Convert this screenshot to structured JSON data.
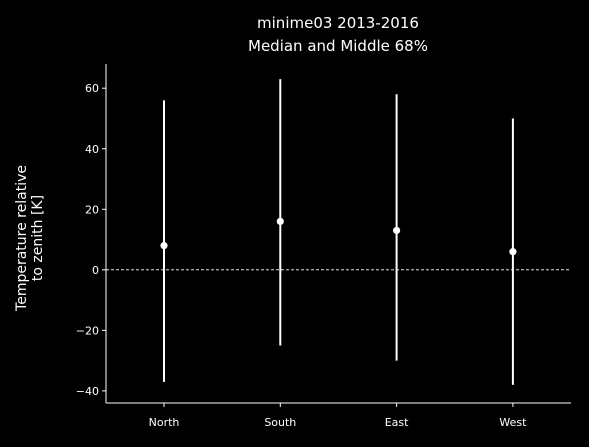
{
  "chart_data": {
    "type": "errorbar",
    "title_line1": "minime03 2013-2016",
    "title_line2": "Median and Middle 68%",
    "xlabel": "",
    "ylabel_line1": "Temperature relative",
    "ylabel_line2": "to zenith [K]",
    "categories": [
      "North",
      "South",
      "East",
      "West"
    ],
    "series": [
      {
        "median": [
          8,
          16,
          13,
          6
        ],
        "lower": [
          -37,
          -25,
          -30,
          -38
        ],
        "upper": [
          56,
          63,
          58,
          50
        ]
      }
    ],
    "ylim": [
      -44,
      68
    ],
    "yticks": [
      -40,
      -20,
      0,
      20,
      40,
      60
    ],
    "ytick_labels": [
      "−40",
      "−20",
      "0",
      "20",
      "40",
      "60"
    ],
    "reference_line": {
      "y": 0,
      "style": "dashed"
    },
    "grid": false,
    "colors": {
      "background": "#000000",
      "foreground": "#ffffff"
    }
  }
}
